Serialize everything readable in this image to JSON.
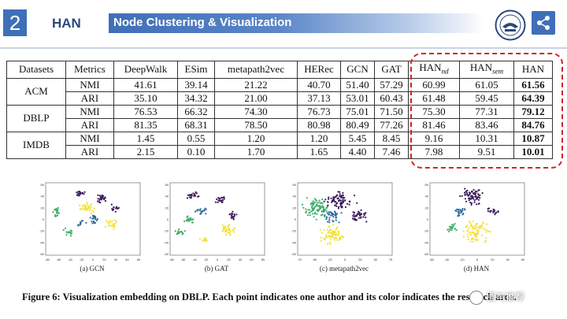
{
  "header": {
    "section_number": "2",
    "model_name": "HAN",
    "title": "Node Clustering & Visualization"
  },
  "colors": {
    "accent": "#3f6fb8",
    "highlight_border": "#d3232a",
    "cluster_purple": "#3b1a5a",
    "cluster_blue": "#2e6a9a",
    "cluster_green": "#3fae6a",
    "cluster_yellow": "#f2e13a"
  },
  "table": {
    "headers": [
      "Datasets",
      "Metrics",
      "DeepWalk",
      "ESim",
      "metapath2vec",
      "HERec",
      "GCN",
      "GAT",
      "HAN",
      "nd",
      "HAN",
      "sem",
      "HAN"
    ],
    "datasets": [
      "ACM",
      "DBLP",
      "IMDB"
    ],
    "rows": [
      {
        "metric": "NMI",
        "values": [
          "41.61",
          "39.14",
          "21.22",
          "40.70",
          "51.40",
          "57.29",
          "60.99",
          "61.05",
          "61.56"
        ]
      },
      {
        "metric": "ARI",
        "values": [
          "35.10",
          "34.32",
          "21.00",
          "37.13",
          "53.01",
          "60.43",
          "61.48",
          "59.45",
          "64.39"
        ]
      },
      {
        "metric": "NMI",
        "values": [
          "76.53",
          "66.32",
          "74.30",
          "76.73",
          "75.01",
          "71.50",
          "75.30",
          "77.31",
          "79.12"
        ]
      },
      {
        "metric": "ARI",
        "values": [
          "81.35",
          "68.31",
          "78.50",
          "80.98",
          "80.49",
          "77.26",
          "81.46",
          "83.46",
          "84.76"
        ]
      },
      {
        "metric": "NMI",
        "values": [
          "1.45",
          "0.55",
          "1.20",
          "1.20",
          "5.45",
          "8.45",
          "9.16",
          "10.31",
          "10.87"
        ]
      },
      {
        "metric": "ARI",
        "values": [
          "2.15",
          "0.10",
          "1.70",
          "1.65",
          "4.40",
          "7.46",
          "7.98",
          "9.51",
          "10.01"
        ]
      }
    ]
  },
  "panels": [
    {
      "caption": "(a) GCN",
      "yticks": [
        "60",
        "40",
        "20",
        "0",
        "-20",
        "-40",
        "-60"
      ],
      "xticks": [
        "-80",
        "-60",
        "-40",
        "-20",
        "0",
        "20",
        "40",
        "60",
        "80"
      ]
    },
    {
      "caption": "(b) GAT",
      "yticks": [
        "60",
        "40",
        "20",
        "0",
        "-20",
        "-40",
        "-60"
      ],
      "xticks": [
        "-80",
        "-60",
        "-40",
        "-20",
        "0",
        "20",
        "40",
        "60",
        "80"
      ]
    },
    {
      "caption": "(c) metapath2vec",
      "yticks": [
        "60",
        "40",
        "20",
        "0",
        "-20",
        "-40",
        "-60"
      ],
      "xticks": [
        "-75",
        "-50",
        "-25",
        "0",
        "25",
        "50",
        "75"
      ]
    },
    {
      "caption": "(d) HAN",
      "yticks": [
        "60",
        "40",
        "20",
        "0",
        "-20",
        "-40",
        "-60"
      ],
      "xticks": [
        "-60",
        "-40",
        "-20",
        "0",
        "20",
        "40",
        "60"
      ]
    }
  ],
  "figure_caption": "Figure 6: Visualization embedding on DBLP. Each point indicates one author and its color indicates the research area.",
  "watermark": "图与推荐"
}
